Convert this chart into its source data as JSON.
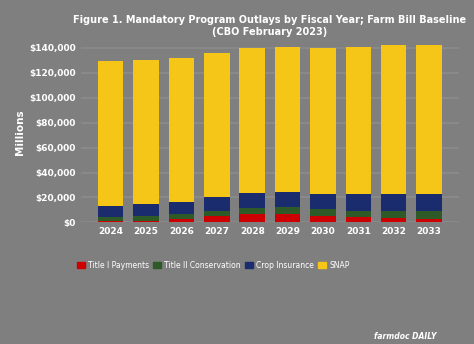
{
  "title": "Figure 1. Mandatory Program Outlays by Fiscal Year; Farm Bill Baseline\n(CBO February 2023)",
  "years": [
    2024,
    2025,
    2026,
    2027,
    2028,
    2029,
    2030,
    2031,
    2032,
    2033
  ],
  "title_i_payments": [
    1500,
    1500,
    2500,
    5000,
    6500,
    7000,
    5000,
    4000,
    3500,
    3000
  ],
  "title_ii_conservation": [
    3000,
    3500,
    4000,
    4500,
    5000,
    5000,
    5500,
    5500,
    6000,
    6000
  ],
  "crop_insurance": [
    9000,
    9500,
    10000,
    11000,
    12000,
    12500,
    12500,
    13000,
    13500,
    13500
  ],
  "snap": [
    116000,
    116000,
    115000,
    115000,
    116000,
    116000,
    117000,
    118000,
    119000,
    120000
  ],
  "colors": {
    "title_i": "#cc0000",
    "title_ii": "#2d5a27",
    "crop_insurance": "#1a2b6e",
    "snap": "#f5c518"
  },
  "ylabel": "Millions",
  "ylim": [
    0,
    145000
  ],
  "yticks": [
    0,
    20000,
    40000,
    60000,
    80000,
    100000,
    120000,
    140000
  ],
  "ytick_labels": [
    "$0",
    "$20,000",
    "$40,000",
    "$60,000",
    "$80,000",
    "$100,000",
    "$120,000",
    "$140,000"
  ],
  "background_color": "#7f7f7f",
  "legend_labels": [
    "Title I Payments",
    "Title II Conservation",
    "Crop Insurance",
    "SNAP"
  ],
  "watermark": "farmdoc DAILY"
}
